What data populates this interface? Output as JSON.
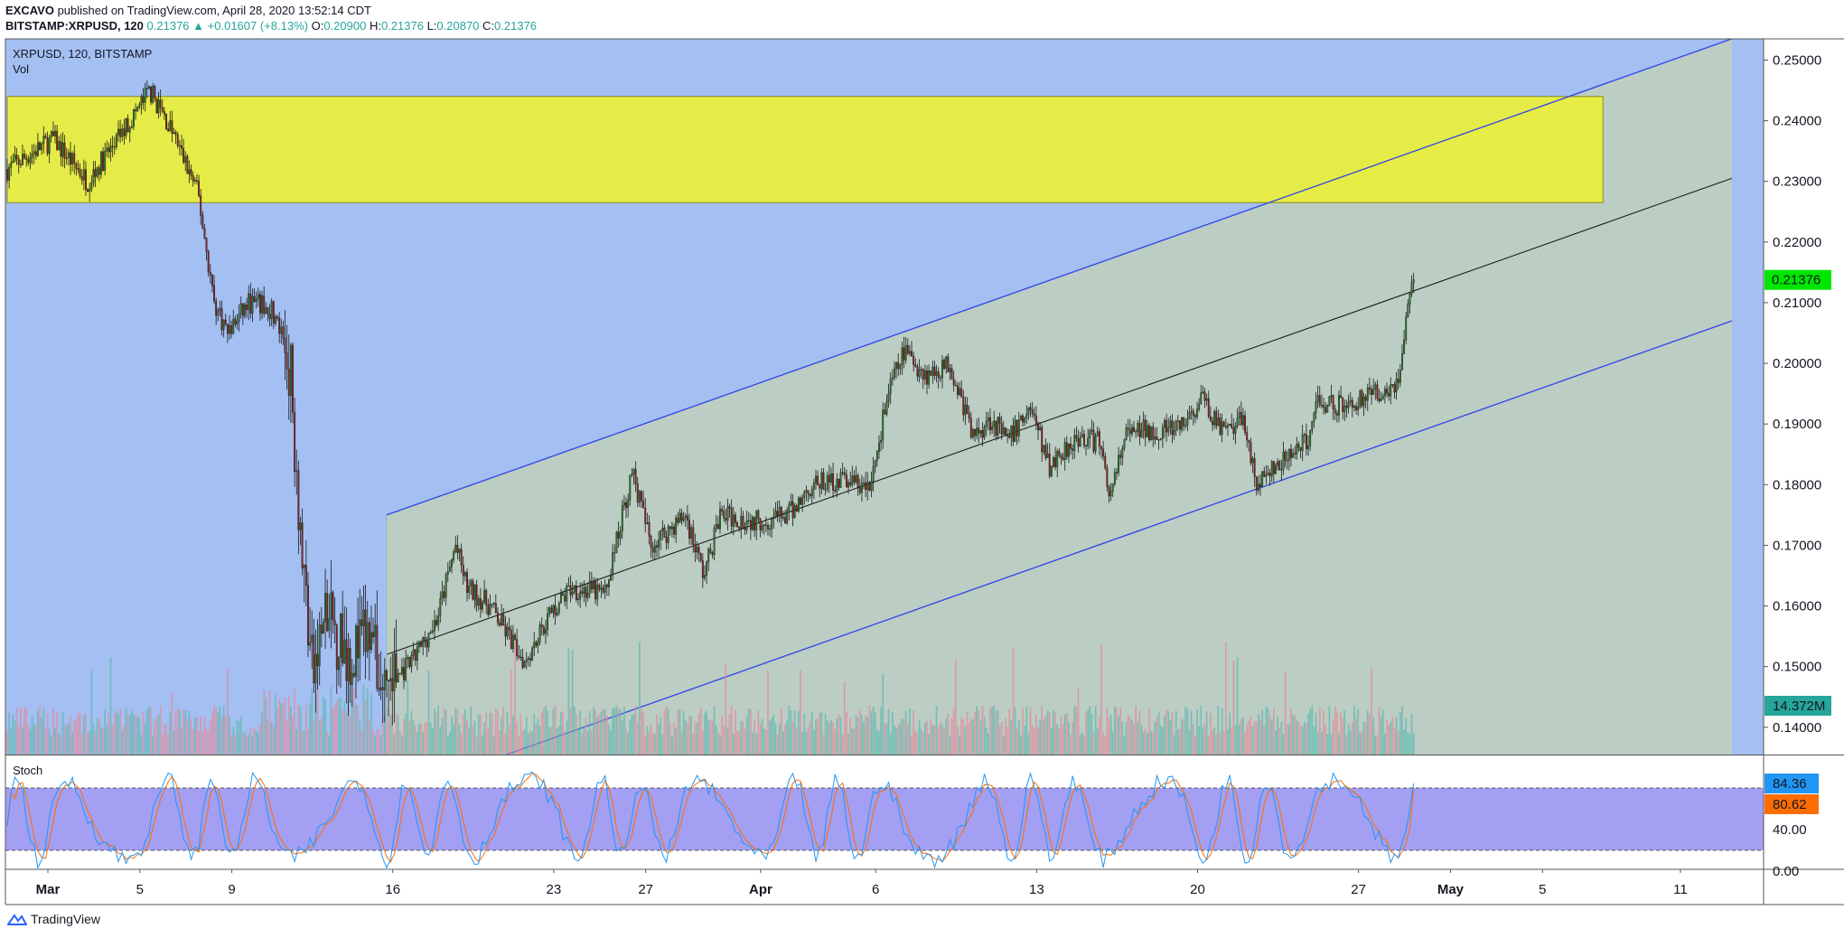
{
  "header": {
    "publisher": "EXCAVO",
    "published_text": "published on TradingView.com, April 28, 2020 13:52:14 CDT",
    "symbol_line": "BITSTAMP:XRPUSD, 120",
    "change_arrow": "▲",
    "change": "+0.01607 (+8.13%)",
    "last": "0.21376",
    "o_label": "O:",
    "o_value": "0.20900",
    "h_label": "H:",
    "h_value": "0.21376",
    "l_label": "L:",
    "l_value": "0.20870",
    "c_label": "C:",
    "c_value": "0.21376"
  },
  "pane_legend": {
    "title": "XRPUSD, 120, BITSTAMP",
    "vol": "Vol",
    "stoch": "Stoch"
  },
  "footer": {
    "brand": "TradingView"
  },
  "colors": {
    "background": "#a4bff2",
    "zone_yellow": "#eaf03a",
    "channel_fill": "#bccdc4",
    "channel_line": "#3043e8",
    "mid_line": "#1c1c1c",
    "up": "#2a7d2a",
    "down": "#8c2222",
    "vol_up": "#5fb8b0",
    "vol_down": "#e08c9c",
    "stoch_band": "#a39ff2",
    "stoch_k": "#2196f3",
    "stoch_d": "#ff6d00",
    "last_price_tag": "#00e600",
    "vol_tag": "#26a69a"
  },
  "chart_data": {
    "type": "candlestick",
    "symbol": "XRPUSD",
    "interval": "120",
    "exchange": "BITSTAMP",
    "ylim": [
      0.1355,
      0.2535
    ],
    "y_ticks": [
      "0.25000",
      "0.24000",
      "0.23000",
      "0.22000",
      "0.21000",
      "0.20000",
      "0.19000",
      "0.18000",
      "0.17000",
      "0.16000",
      "0.15000",
      "0.14000"
    ],
    "x_ticks": [
      "Mar",
      "5",
      "9",
      "16",
      "23",
      "27",
      "Apr",
      "6",
      "13",
      "20",
      "27",
      "May",
      "5",
      "11"
    ],
    "price_anchors": [
      {
        "day": 0.0,
        "price": 0.232
      },
      {
        "day": 2.0,
        "price": 0.237
      },
      {
        "day": 3.5,
        "price": 0.23
      },
      {
        "day": 5.0,
        "price": 0.238
      },
      {
        "day": 6.2,
        "price": 0.245
      },
      {
        "day": 7.2,
        "price": 0.238
      },
      {
        "day": 8.3,
        "price": 0.228
      },
      {
        "day": 9.0,
        "price": 0.21
      },
      {
        "day": 9.6,
        "price": 0.205
      },
      {
        "day": 10.5,
        "price": 0.21
      },
      {
        "day": 11.5,
        "price": 0.209
      },
      {
        "day": 12.3,
        "price": 0.2
      },
      {
        "day": 12.8,
        "price": 0.17
      },
      {
        "day": 13.3,
        "price": 0.148
      },
      {
        "day": 13.8,
        "price": 0.158
      },
      {
        "day": 15.0,
        "price": 0.152
      },
      {
        "day": 15.7,
        "price": 0.155
      },
      {
        "day": 16.3,
        "price": 0.147
      },
      {
        "day": 17.5,
        "price": 0.15
      },
      {
        "day": 18.7,
        "price": 0.158
      },
      {
        "day": 19.5,
        "price": 0.17
      },
      {
        "day": 20.0,
        "price": 0.163
      },
      {
        "day": 21.0,
        "price": 0.16
      },
      {
        "day": 21.8,
        "price": 0.155
      },
      {
        "day": 22.5,
        "price": 0.151
      },
      {
        "day": 23.5,
        "price": 0.158
      },
      {
        "day": 24.5,
        "price": 0.163
      },
      {
        "day": 26.0,
        "price": 0.162
      },
      {
        "day": 26.8,
        "price": 0.176
      },
      {
        "day": 27.2,
        "price": 0.182
      },
      {
        "day": 28.0,
        "price": 0.17
      },
      {
        "day": 29.5,
        "price": 0.175
      },
      {
        "day": 30.3,
        "price": 0.165
      },
      {
        "day": 31.0,
        "price": 0.175
      },
      {
        "day": 32.5,
        "price": 0.174
      },
      {
        "day": 34.0,
        "price": 0.175
      },
      {
        "day": 35.0,
        "price": 0.18
      },
      {
        "day": 36.5,
        "price": 0.181
      },
      {
        "day": 37.5,
        "price": 0.179
      },
      {
        "day": 38.3,
        "price": 0.195
      },
      {
        "day": 39.0,
        "price": 0.202
      },
      {
        "day": 40.0,
        "price": 0.198
      },
      {
        "day": 41.0,
        "price": 0.2
      },
      {
        "day": 42.0,
        "price": 0.188
      },
      {
        "day": 42.8,
        "price": 0.191
      },
      {
        "day": 43.5,
        "price": 0.187
      },
      {
        "day": 44.5,
        "price": 0.193
      },
      {
        "day": 45.3,
        "price": 0.183
      },
      {
        "day": 46.5,
        "price": 0.188
      },
      {
        "day": 47.5,
        "price": 0.187
      },
      {
        "day": 48.0,
        "price": 0.178
      },
      {
        "day": 48.6,
        "price": 0.188
      },
      {
        "day": 49.5,
        "price": 0.189
      },
      {
        "day": 51.0,
        "price": 0.189
      },
      {
        "day": 52.0,
        "price": 0.194
      },
      {
        "day": 53.0,
        "price": 0.188
      },
      {
        "day": 53.8,
        "price": 0.191
      },
      {
        "day": 54.3,
        "price": 0.18
      },
      {
        "day": 55.3,
        "price": 0.183
      },
      {
        "day": 56.5,
        "price": 0.187
      },
      {
        "day": 57.0,
        "price": 0.194
      },
      {
        "day": 58.0,
        "price": 0.193
      },
      {
        "day": 59.5,
        "price": 0.195
      },
      {
        "day": 60.5,
        "price": 0.197
      },
      {
        "day": 60.9,
        "price": 0.209
      },
      {
        "day": 61.2,
        "price": 0.2138
      }
    ],
    "volume_label": "14.372M",
    "last_price_label": "0.21376",
    "stoch": {
      "k": 84.36,
      "d": 80.62,
      "bands": [
        20,
        80
      ],
      "ticks": [
        "40.00",
        "0.00"
      ],
      "ylim": [
        0,
        100
      ]
    },
    "drawings": {
      "resistance_zone": {
        "price_top": 0.244,
        "price_bottom": 0.2265,
        "day_start": 0,
        "day_end": 69.4
      },
      "channel": {
        "day_start": 16.5,
        "day_end": 75.0,
        "upper_start": 0.175,
        "upper_end": 0.2535,
        "mid_start": 0.152,
        "mid_end": 0.2305,
        "lower_start": 0.1285,
        "lower_end": 0.207
      }
    }
  }
}
